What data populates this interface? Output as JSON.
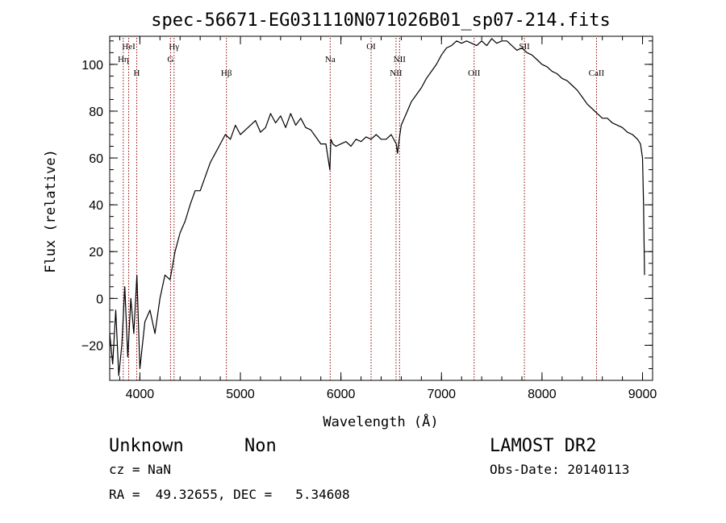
{
  "chart_data": {
    "type": "line",
    "title": "spec-56671-EG031110N071026B01_sp07-214.fits",
    "xlabel": "Wavelength (Å)",
    "ylabel": "Flux (relative)",
    "xlim": [
      3700,
      9100
    ],
    "ylim": [
      -35,
      112
    ],
    "x_ticks": [
      4000,
      5000,
      6000,
      7000,
      8000,
      9000
    ],
    "x_tick_labels": [
      "4000",
      "5000",
      "6000",
      "7000",
      "8000",
      "9000"
    ],
    "x_minor_step": 200,
    "y_ticks": [
      -20,
      0,
      20,
      40,
      60,
      80,
      100
    ],
    "y_tick_labels": [
      "−20",
      "0",
      "20",
      "40",
      "60",
      "80",
      "100"
    ],
    "y_minor_step": 5,
    "grid": false,
    "line_color": "#000000",
    "marker_color": "#8b0000",
    "series": [
      {
        "x": [
          3700,
          3730,
          3760,
          3790,
          3820,
          3850,
          3880,
          3910,
          3940,
          3970,
          4000,
          4050,
          4100,
          4150,
          4200,
          4250,
          4300,
          4350,
          4400,
          4450,
          4500,
          4550,
          4600,
          4650,
          4700,
          4750,
          4800,
          4850,
          4900,
          4950,
          5000,
          5050,
          5100,
          5150,
          5200,
          5250,
          5300,
          5350,
          5400,
          5450,
          5500,
          5550,
          5600,
          5650,
          5700,
          5750,
          5800,
          5850,
          5890,
          5900,
          5920,
          5950,
          6000,
          6050,
          6100,
          6150,
          6200,
          6250,
          6300,
          6350,
          6400,
          6450,
          6500,
          6550,
          6563,
          6580,
          6600,
          6650,
          6700,
          6750,
          6800,
          6850,
          6900,
          6950,
          7000,
          7050,
          7100,
          7150,
          7200,
          7250,
          7300,
          7350,
          7400,
          7450,
          7500,
          7550,
          7600,
          7650,
          7700,
          7750,
          7800,
          7850,
          7900,
          7950,
          8000,
          8050,
          8100,
          8150,
          8200,
          8250,
          8300,
          8350,
          8400,
          8450,
          8500,
          8550,
          8600,
          8650,
          8700,
          8750,
          8800,
          8850,
          8900,
          8950,
          8980,
          9000,
          9010,
          9020
        ],
        "y": [
          -15,
          -28,
          -5,
          -33,
          -20,
          5,
          -25,
          0,
          -15,
          10,
          -30,
          -10,
          -5,
          -15,
          0,
          10,
          8,
          20,
          28,
          33,
          40,
          46,
          46,
          52,
          58,
          62,
          66,
          70,
          68,
          74,
          70,
          72,
          74,
          76,
          71,
          73,
          79,
          75,
          78,
          73,
          79,
          74,
          77,
          73,
          72,
          69,
          66,
          66,
          55,
          68,
          66,
          65,
          66,
          67,
          65,
          68,
          67,
          69,
          68,
          70,
          68,
          68,
          70,
          66,
          62,
          68,
          74,
          79,
          84,
          87,
          90,
          94,
          97,
          100,
          104,
          107,
          108,
          110,
          109,
          110,
          109,
          108,
          110,
          108,
          111,
          109,
          110,
          110,
          108,
          106,
          107,
          105,
          104,
          102,
          100,
          99,
          97,
          96,
          94,
          93,
          91,
          89,
          86,
          83,
          81,
          79,
          77,
          77,
          75,
          74,
          73,
          71,
          70,
          68,
          66,
          60,
          40,
          10
        ]
      }
    ],
    "lines": [
      {
        "label": "HeI",
        "wave": 3889,
        "row": 0
      },
      {
        "label": "Hη",
        "wave": 3835,
        "row": 1
      },
      {
        "label": "H",
        "wave": 3969,
        "row": 2
      },
      {
        "label": "Hγ",
        "wave": 4340,
        "row": 0
      },
      {
        "label": "G",
        "wave": 4305,
        "row": 1
      },
      {
        "label": "Hβ",
        "wave": 4861,
        "row": 2
      },
      {
        "label": "Na",
        "wave": 5893,
        "row": 1
      },
      {
        "label": "OI",
        "wave": 6300,
        "row": 0
      },
      {
        "label": "NII",
        "wave": 6583,
        "row": 1
      },
      {
        "label": "NII",
        "wave": 6548,
        "row": 2
      },
      {
        "label": "OII",
        "wave": 7325,
        "row": 2
      },
      {
        "label": "SII",
        "wave": 7825,
        "row": 0
      },
      {
        "label": "CaII",
        "wave": 8542,
        "row": 2
      }
    ]
  },
  "footer": {
    "class_label": "Unknown",
    "subclass_label": "Non",
    "cz": "cz = NaN",
    "radec": "RA =  49.32655, DEC =   5.34608",
    "survey": "LAMOST DR2",
    "obs_date": "Obs-Date: 20140113"
  }
}
